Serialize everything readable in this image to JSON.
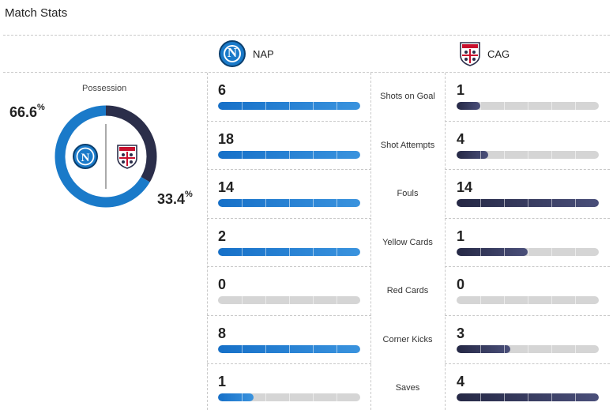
{
  "header": {
    "title": "Match Stats"
  },
  "teams": {
    "home": {
      "abbr": "NAP",
      "color": "#1a7ac9",
      "logo_icon": "napoli-crest-icon",
      "logo_letter": "N"
    },
    "away": {
      "abbr": "CAG",
      "color": "#2b2e4a",
      "logo_icon": "cagliari-crest-icon"
    }
  },
  "possession": {
    "label": "Possession",
    "home_value": "66.6",
    "away_value": "33.4",
    "unit": "%",
    "home_fraction": 0.666
  },
  "stats": [
    {
      "label": "Shots on Goal",
      "home": 6,
      "away": 1
    },
    {
      "label": "Shot Attempts",
      "home": 18,
      "away": 4
    },
    {
      "label": "Fouls",
      "home": 14,
      "away": 14
    },
    {
      "label": "Yellow Cards",
      "home": 2,
      "away": 1
    },
    {
      "label": "Red Cards",
      "home": 0,
      "away": 0
    },
    {
      "label": "Corner Kicks",
      "home": 8,
      "away": 3
    },
    {
      "label": "Saves",
      "home": 1,
      "away": 4
    }
  ]
}
